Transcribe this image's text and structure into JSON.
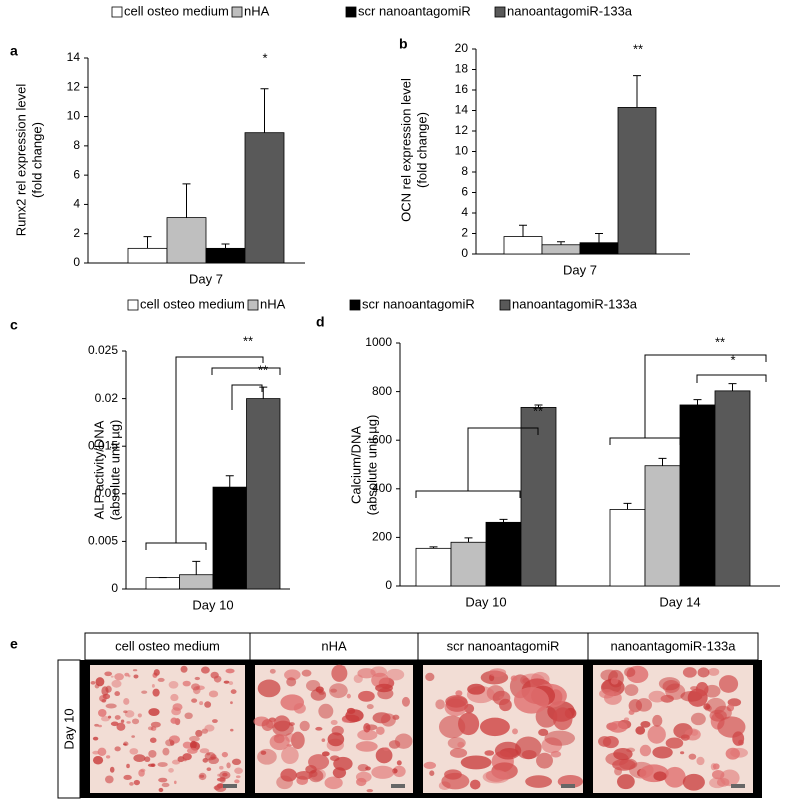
{
  "chart_data": [
    {
      "type": "bar",
      "panel": "a",
      "ylabel": [
        "Runx2 rel expression level",
        "(fold change)"
      ],
      "categories": [
        "Day 7"
      ],
      "series": [
        {
          "name": "cell osteo medium",
          "color": "#ffffff",
          "values": [
            1.0
          ],
          "errors": [
            0.8
          ]
        },
        {
          "name": "nHA",
          "color": "#bfbfbf",
          "values": [
            3.1
          ],
          "errors": [
            2.3
          ]
        },
        {
          "name": "scr nanoantagomiR",
          "color": "#000000",
          "values": [
            1.0
          ],
          "errors": [
            0.3
          ]
        },
        {
          "name": "nanoantagomiR-133a",
          "color": "#595959",
          "values": [
            8.9
          ],
          "errors": [
            3.0
          ]
        }
      ],
      "ylim": [
        0,
        14
      ],
      "yticks": [
        0,
        2,
        4,
        6,
        8,
        10,
        12,
        14
      ],
      "annotations": [
        "*"
      ]
    },
    {
      "type": "bar",
      "panel": "b",
      "ylabel": [
        "OCN rel expression level",
        "(fold change)"
      ],
      "categories": [
        "Day 7"
      ],
      "series": [
        {
          "color": "#ffffff",
          "values": [
            1.7
          ],
          "errors": [
            1.1
          ]
        },
        {
          "color": "#bfbfbf",
          "values": [
            0.9
          ],
          "errors": [
            0.3
          ]
        },
        {
          "color": "#000000",
          "values": [
            1.1
          ],
          "errors": [
            0.9
          ]
        },
        {
          "color": "#595959",
          "values": [
            14.3
          ],
          "errors": [
            3.1
          ]
        }
      ],
      "ylim": [
        0,
        20
      ],
      "yticks": [
        0,
        2,
        4,
        6,
        8,
        10,
        12,
        14,
        16,
        18,
        20
      ],
      "annotations": [
        "**"
      ]
    },
    {
      "type": "bar",
      "panel": "c",
      "ylabel": [
        "ALP activity/DNA",
        "(absolute unit µg)"
      ],
      "categories": [
        "Day 10"
      ],
      "series": [
        {
          "name": "cell osteo medium",
          "color": "#ffffff",
          "values": [
            0.0012
          ],
          "errors": [
            0
          ]
        },
        {
          "name": "nHA",
          "color": "#bfbfbf",
          "values": [
            0.0015
          ],
          "errors": [
            0.0014
          ]
        },
        {
          "name": "scr nanoantagomiR",
          "color": "#000000",
          "values": [
            0.0107
          ],
          "errors": [
            0.0012
          ]
        },
        {
          "name": "nanoantagomiR-133a",
          "color": "#595959",
          "values": [
            0.02
          ],
          "errors": [
            0.0012
          ]
        }
      ],
      "ylim": [
        0,
        0.025
      ],
      "yticks": [
        0,
        0.005,
        0.01,
        0.015,
        0.02,
        0.025
      ],
      "annotations": [
        "**",
        "**"
      ]
    },
    {
      "type": "bar",
      "panel": "d",
      "ylabel": [
        "Calcium/DNA",
        "(absolute unit µg)"
      ],
      "categories": [
        "Day 10",
        "Day 14"
      ],
      "series": [
        {
          "color": "#ffffff",
          "values": [
            155,
            315
          ],
          "errors": [
            6,
            25
          ]
        },
        {
          "color": "#bfbfbf",
          "values": [
            180,
            495
          ],
          "errors": [
            18,
            30
          ]
        },
        {
          "color": "#000000",
          "values": [
            262,
            745
          ],
          "errors": [
            12,
            22
          ]
        },
        {
          "color": "#595959",
          "values": [
            735,
            803
          ],
          "errors": [
            10,
            30
          ]
        }
      ],
      "ylim": [
        0,
        1000
      ],
      "yticks": [
        0,
        200,
        400,
        600,
        800,
        1000
      ],
      "annotations": [
        "**",
        "**",
        "*"
      ]
    }
  ],
  "panel_e": {
    "label": "e",
    "columns": [
      "cell osteo medium",
      "nHA",
      "scr nanoantagomiR",
      "nanoantagomiR-133a"
    ],
    "row_label": "Day 10"
  }
}
